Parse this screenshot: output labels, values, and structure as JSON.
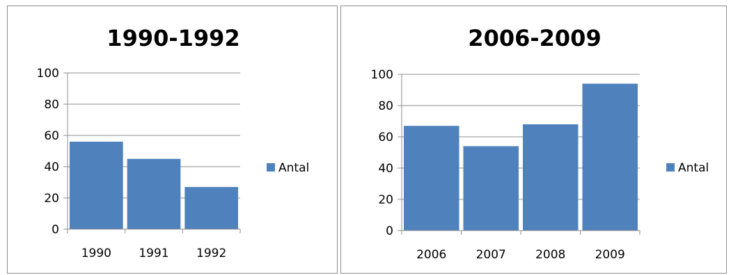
{
  "chart_data": [
    {
      "type": "bar",
      "title": "1990-1992",
      "categories": [
        "1990",
        "1991",
        "1992"
      ],
      "series": [
        {
          "name": "Antal",
          "values": [
            56,
            45,
            27
          ]
        }
      ],
      "ylim": [
        0,
        100
      ],
      "yticks": [
        0,
        20,
        40,
        60,
        80,
        100
      ],
      "grid": true,
      "legend": "right",
      "colors": {
        "bar": "#4f81bd",
        "grid": "#8c8c8c",
        "axis": "#8c8c8c"
      }
    },
    {
      "type": "bar",
      "title": "2006-2009",
      "categories": [
        "2006",
        "2007",
        "2008",
        "2009"
      ],
      "series": [
        {
          "name": "Antal",
          "values": [
            67,
            54,
            68,
            94
          ]
        }
      ],
      "ylim": [
        0,
        100
      ],
      "yticks": [
        0,
        20,
        40,
        60,
        80,
        100
      ],
      "grid": true,
      "legend": "right",
      "colors": {
        "bar": "#4f81bd",
        "grid": "#8c8c8c",
        "axis": "#8c8c8c"
      }
    }
  ]
}
